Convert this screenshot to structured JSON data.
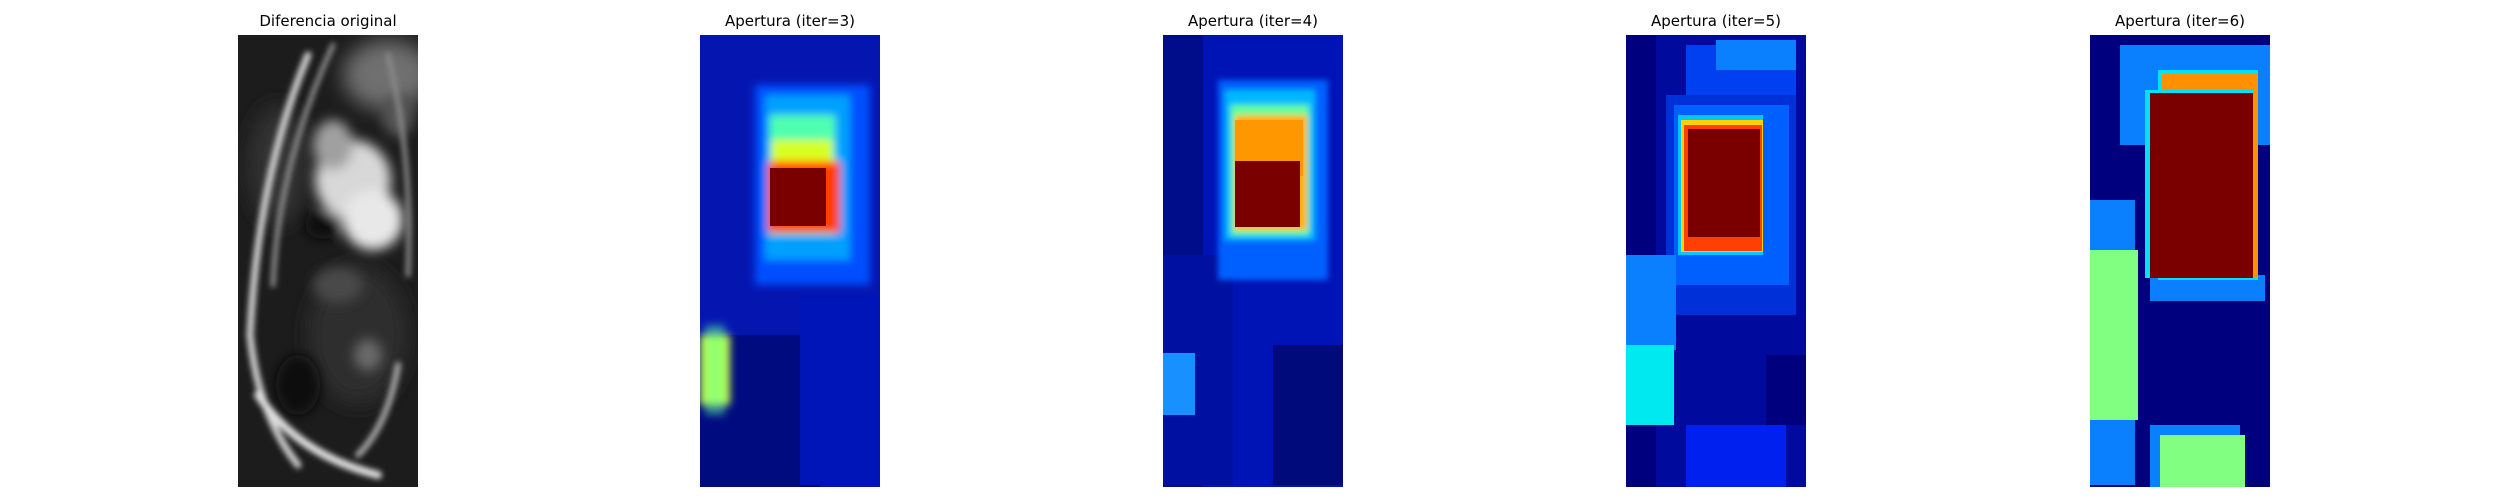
{
  "panels": [
    {
      "title": "Diferencia original",
      "colormap": "gray"
    },
    {
      "title": "Apertura (iter=3)",
      "colormap": "jet"
    },
    {
      "title": "Apertura (iter=4)",
      "colormap": "jet"
    },
    {
      "title": "Apertura (iter=5)",
      "colormap": "jet"
    },
    {
      "title": "Apertura (iter=6)",
      "colormap": "jet"
    }
  ]
}
